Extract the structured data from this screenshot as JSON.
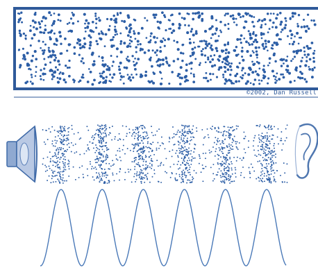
{
  "copyright": "©2002, Dan Russell",
  "colors": {
    "particle": "#2c5ea6",
    "frame": "#2f5a9a",
    "wave": "#4a79b8",
    "speaker": "#6e8fbf",
    "ear": "#4f77b0"
  },
  "icons": {
    "speaker": "speaker-icon",
    "ear": "ear-icon"
  }
}
